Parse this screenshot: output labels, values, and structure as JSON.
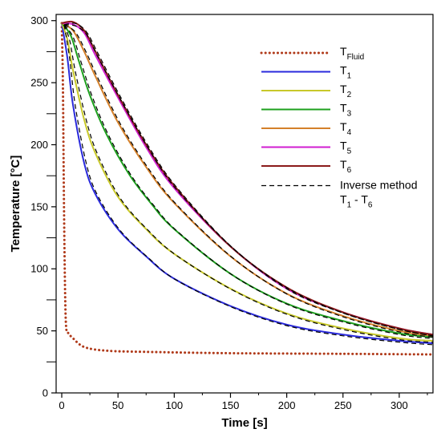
{
  "chart_data": {
    "type": "line",
    "xlabel": "Time [s]",
    "ylabel": "Temperature [°C]",
    "xlim": [
      -5,
      330
    ],
    "ylim": [
      0,
      305
    ],
    "x_ticks": [
      "0",
      "50",
      "100",
      "150",
      "200",
      "250",
      "300"
    ],
    "y_ticks": [
      "0",
      "50",
      "100",
      "150",
      "200",
      "250",
      "300"
    ],
    "x_tick_values": [
      0,
      50,
      100,
      150,
      200,
      250,
      300
    ],
    "y_tick_values": [
      0,
      50,
      100,
      150,
      200,
      250,
      300
    ],
    "legend_position": "top-right",
    "series": [
      {
        "name": "T_Fluid",
        "label_main": "T",
        "label_sub": "Fluid",
        "color": "#b03a1a",
        "style": "dotted",
        "points": [
          [
            0,
            298
          ],
          [
            1,
            250
          ],
          [
            2,
            150
          ],
          [
            3,
            80
          ],
          [
            4,
            52
          ],
          [
            6,
            48
          ],
          [
            10,
            44
          ],
          [
            20,
            37
          ],
          [
            40,
            34
          ],
          [
            80,
            33
          ],
          [
            150,
            32
          ],
          [
            250,
            31.5
          ],
          [
            330,
            31
          ]
        ]
      },
      {
        "name": "T_1",
        "label_main": "T",
        "label_sub": "1",
        "color": "#2a2adc",
        "style": "solid",
        "points": [
          [
            0,
            298
          ],
          [
            5,
            270
          ],
          [
            10,
            232
          ],
          [
            20,
            185
          ],
          [
            30,
            160
          ],
          [
            50,
            132
          ],
          [
            75,
            110
          ],
          [
            100,
            92
          ],
          [
            150,
            70
          ],
          [
            200,
            55
          ],
          [
            250,
            47
          ],
          [
            300,
            42
          ],
          [
            330,
            40
          ]
        ]
      },
      {
        "name": "T_2",
        "label_main": "T",
        "label_sub": "2",
        "color": "#c8c82a",
        "style": "solid",
        "points": [
          [
            0,
            298
          ],
          [
            5,
            285
          ],
          [
            10,
            260
          ],
          [
            20,
            220
          ],
          [
            30,
            193
          ],
          [
            50,
            158
          ],
          [
            75,
            132
          ],
          [
            100,
            112
          ],
          [
            150,
            84
          ],
          [
            200,
            64
          ],
          [
            250,
            52
          ],
          [
            300,
            44
          ],
          [
            330,
            42
          ]
        ]
      },
      {
        "name": "T_3",
        "label_main": "T",
        "label_sub": "3",
        "color": "#1ea01e",
        "style": "solid",
        "points": [
          [
            0,
            298
          ],
          [
            8,
            288
          ],
          [
            15,
            268
          ],
          [
            25,
            240
          ],
          [
            40,
            208
          ],
          [
            60,
            176
          ],
          [
            80,
            152
          ],
          [
            100,
            132
          ],
          [
            150,
            96
          ],
          [
            200,
            72
          ],
          [
            250,
            58
          ],
          [
            300,
            48
          ],
          [
            330,
            45
          ]
        ]
      },
      {
        "name": "T_4",
        "label_main": "T",
        "label_sub": "4",
        "color": "#d4802a",
        "style": "solid",
        "points": [
          [
            0,
            298
          ],
          [
            10,
            292
          ],
          [
            20,
            275
          ],
          [
            30,
            255
          ],
          [
            50,
            218
          ],
          [
            75,
            182
          ],
          [
            100,
            153
          ],
          [
            150,
            110
          ],
          [
            200,
            80
          ],
          [
            250,
            62
          ],
          [
            300,
            50
          ],
          [
            330,
            46
          ]
        ]
      },
      {
        "name": "T_5",
        "label_main": "T",
        "label_sub": "5",
        "color": "#d01ed0",
        "style": "solid",
        "points": [
          [
            0,
            298
          ],
          [
            10,
            297
          ],
          [
            20,
            290
          ],
          [
            30,
            272
          ],
          [
            50,
            238
          ],
          [
            75,
            198
          ],
          [
            100,
            165
          ],
          [
            150,
            118
          ],
          [
            200,
            84
          ],
          [
            250,
            65
          ],
          [
            300,
            52
          ],
          [
            330,
            47
          ]
        ]
      },
      {
        "name": "T_6",
        "label_main": "T",
        "label_sub": "6",
        "color": "#8b1a1a",
        "style": "solid",
        "points": [
          [
            0,
            298
          ],
          [
            10,
            299
          ],
          [
            20,
            292
          ],
          [
            30,
            275
          ],
          [
            50,
            240
          ],
          [
            75,
            200
          ],
          [
            100,
            167
          ],
          [
            150,
            118
          ],
          [
            200,
            85
          ],
          [
            250,
            65
          ],
          [
            300,
            52
          ],
          [
            330,
            47
          ]
        ]
      }
    ],
    "inverse_legend_line1": "Inverse method",
    "inverse_legend_line2_main": "T",
    "inverse_legend_line2_sub": "1",
    "inverse_legend_line2_end": " - T",
    "inverse_legend_line2_sub2": "6",
    "inverse_color": "#000000"
  }
}
